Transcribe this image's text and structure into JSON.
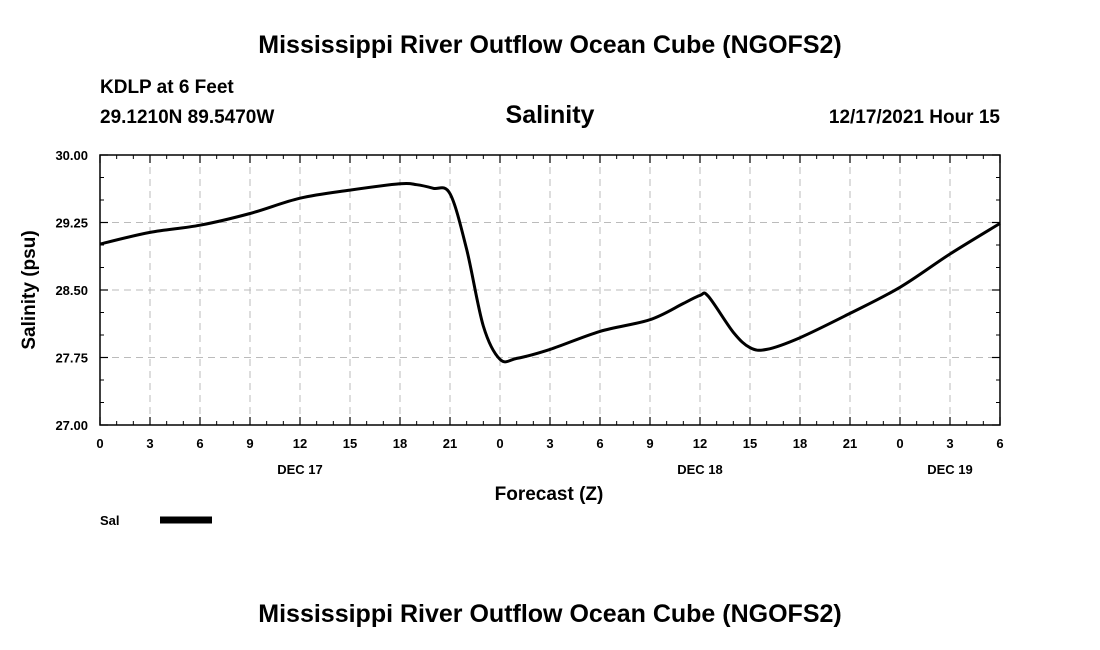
{
  "header": {
    "title_top": "Mississippi River Outflow Ocean Cube (NGOFS2)",
    "title_bottom": "Mississippi River Outflow Ocean Cube (NGOFS2)",
    "station": "KDLP at 6 Feet",
    "coords": "29.1210N  89.5470W",
    "run_time": "12/17/2021 Hour 15"
  },
  "chart_data": {
    "type": "line",
    "title": "Salinity",
    "xlabel": "Forecast (Z)",
    "ylabel": "Salinity (psu)",
    "ylim": [
      27.0,
      30.0
    ],
    "yticks": [
      "27.00",
      "27.75",
      "28.50",
      "29.25",
      "30.00"
    ],
    "xlim": [
      0,
      54
    ],
    "xtick_labels": [
      "0",
      "3",
      "6",
      "9",
      "12",
      "15",
      "18",
      "21",
      "0",
      "3",
      "6",
      "9",
      "12",
      "15",
      "18",
      "21",
      "0",
      "3",
      "6"
    ],
    "day_labels": [
      {
        "label": "DEC 17",
        "hour": 12
      },
      {
        "label": "DEC 18",
        "hour": 36
      },
      {
        "label": "DEC 19",
        "hour": 51
      }
    ],
    "grid": true,
    "series": [
      {
        "name": "Sal",
        "color": "#000000",
        "x": [
          0,
          3,
          6,
          9,
          12,
          15,
          18,
          19,
          20,
          21,
          22,
          23,
          24,
          25,
          27,
          30,
          33,
          35,
          36,
          36.5,
          38,
          39,
          40,
          42,
          45,
          48,
          51,
          54
        ],
        "y": [
          29.01,
          29.14,
          29.22,
          29.35,
          29.52,
          29.61,
          29.68,
          29.67,
          29.63,
          29.57,
          28.95,
          28.1,
          27.73,
          27.74,
          27.84,
          28.04,
          28.17,
          28.35,
          28.44,
          28.43,
          28.03,
          27.86,
          27.84,
          27.97,
          28.24,
          28.53,
          28.9,
          29.24
        ]
      }
    ]
  }
}
